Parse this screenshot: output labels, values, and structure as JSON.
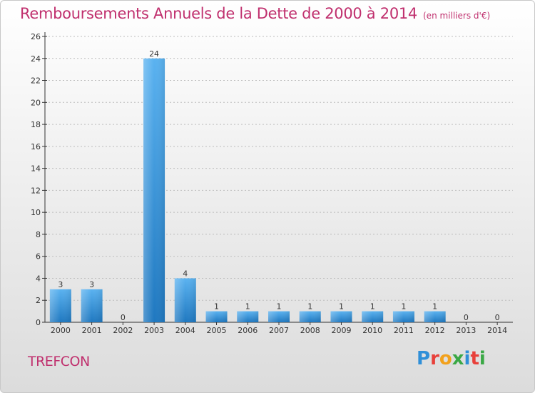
{
  "title": "Remboursements Annuels de la Dette de 2000 à 2014",
  "subtitle": "(en milliers d'€)",
  "commune": "TREFCON",
  "logo": {
    "letters": [
      {
        "ch": "P",
        "color": "#2f8fd8"
      },
      {
        "ch": "r",
        "color": "#e8403a"
      },
      {
        "ch": "o",
        "color": "#f2a11c"
      },
      {
        "ch": "x",
        "color": "#3aa845"
      },
      {
        "ch": "i",
        "color": "#2f8fd8"
      },
      {
        "ch": "t",
        "color": "#e8403a"
      },
      {
        "ch": "i",
        "color": "#3aa845"
      }
    ]
  },
  "colors": {
    "title": "#c0306e",
    "bar_light": "#5ab2f0",
    "bar_dark": "#1f78c0",
    "axis": "#333333",
    "grid": "#bdbdbd"
  },
  "chart_data": {
    "type": "bar",
    "categories": [
      "2000",
      "2001",
      "2002",
      "2003",
      "2004",
      "2005",
      "2006",
      "2007",
      "2008",
      "2009",
      "2010",
      "2011",
      "2012",
      "2013",
      "2014"
    ],
    "values": [
      3,
      3,
      0,
      24,
      4,
      1,
      1,
      1,
      1,
      1,
      1,
      1,
      1,
      0,
      0
    ],
    "ylim": [
      0,
      26
    ],
    "yticks": [
      0,
      2,
      4,
      6,
      8,
      10,
      12,
      14,
      16,
      18,
      20,
      22,
      24,
      26
    ],
    "grid": true,
    "xlabel": "",
    "ylabel": ""
  }
}
